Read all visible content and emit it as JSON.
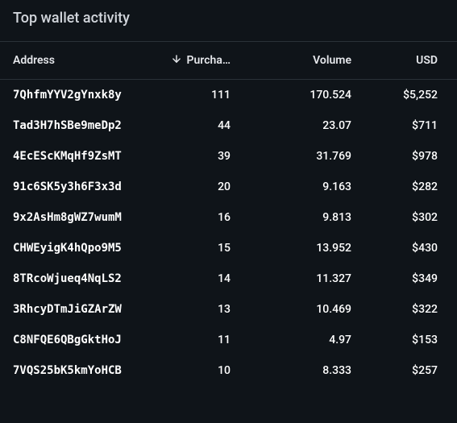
{
  "panel": {
    "title": "Top wallet activity"
  },
  "table": {
    "columns": {
      "address": "Address",
      "purchases": "Purcha…",
      "volume": "Volume",
      "usd": "USD"
    },
    "sort": {
      "column": "purchases",
      "direction": "desc"
    },
    "rows": [
      {
        "address": "7QhfmYYV2gYnxk8y",
        "purchases": "111",
        "volume": "170.524",
        "usd": "$5,252"
      },
      {
        "address": "Tad3H7hSBe9meDp2",
        "purchases": "44",
        "volume": "23.07",
        "usd": "$711"
      },
      {
        "address": "4EcEScKMqHf9ZsMT",
        "purchases": "39",
        "volume": "31.769",
        "usd": "$978"
      },
      {
        "address": "91c6SK5y3h6F3x3d",
        "purchases": "20",
        "volume": "9.163",
        "usd": "$282"
      },
      {
        "address": "9x2AsHm8gWZ7wumM",
        "purchases": "16",
        "volume": "9.813",
        "usd": "$302"
      },
      {
        "address": "CHWEyigK4hQpo9M5",
        "purchases": "15",
        "volume": "13.952",
        "usd": "$430"
      },
      {
        "address": "8TRcoWjueq4NqLS2",
        "purchases": "14",
        "volume": "11.327",
        "usd": "$349"
      },
      {
        "address": "3RhcyDTmJiGZArZW",
        "purchases": "13",
        "volume": "10.469",
        "usd": "$322"
      },
      {
        "address": "C8NFQE6QBgGktHoJ",
        "purchases": "11",
        "volume": "4.97",
        "usd": "$153"
      },
      {
        "address": "7VQS25bK5kmYoHCB",
        "purchases": "10",
        "volume": "8.333",
        "usd": "$257"
      }
    ]
  },
  "colors": {
    "background": "#0f1419",
    "border": "#2a3138",
    "textPrimary": "#ffffff",
    "textSecondary": "#d1d5db"
  }
}
